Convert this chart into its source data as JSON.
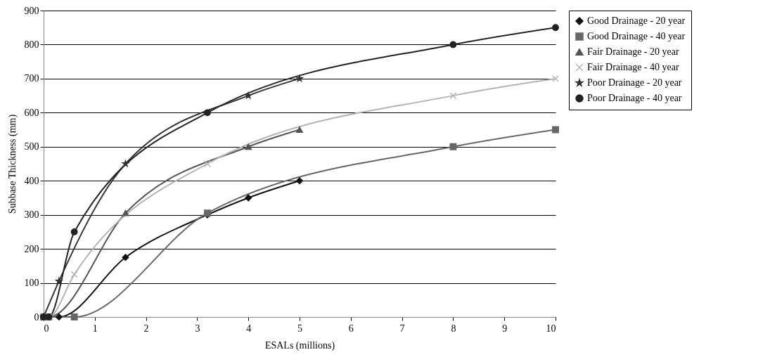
{
  "chart_data": {
    "type": "line",
    "xlabel": "ESALs (millions)",
    "ylabel": "Subbase Thickness (mm)",
    "xlim": [
      0,
      10
    ],
    "xticks": [
      0,
      1,
      2,
      3,
      4,
      5,
      6,
      7,
      8,
      9,
      10
    ],
    "ylim": [
      0,
      900
    ],
    "yticks": [
      0,
      100,
      200,
      300,
      400,
      500,
      600,
      700,
      800,
      900
    ],
    "grid": "y",
    "legend": "right",
    "series": [
      {
        "name": "Good Drainage - 20 year",
        "color": "#111111",
        "marker": "diamond",
        "x": [
          0,
          0.3,
          1.6,
          3.2,
          4,
          5
        ],
        "values": [
          0,
          0,
          175,
          300,
          350,
          400
        ]
      },
      {
        "name": "Good Drainage - 40 year",
        "color": "#666666",
        "marker": "square",
        "x": [
          0,
          0.1,
          0.6,
          3.2,
          8,
          10
        ],
        "values": [
          0,
          0,
          0,
          305,
          500,
          550
        ]
      },
      {
        "name": "Fair Drainage - 20 year",
        "color": "#555555",
        "marker": "triangle",
        "x": [
          0,
          0.1,
          1.6,
          4,
          5
        ],
        "values": [
          0,
          0,
          305,
          500,
          550
        ]
      },
      {
        "name": "Fair Drainage - 40 year",
        "color": "#b3b3b3",
        "marker": "cross",
        "x": [
          0,
          0.1,
          0.6,
          3.2,
          8,
          10
        ],
        "values": [
          0,
          0,
          125,
          450,
          650,
          700
        ]
      },
      {
        "name": "Poor Drainage - 20 year",
        "color": "#333333",
        "marker": "star",
        "x": [
          0,
          0.3,
          1.6,
          4,
          5
        ],
        "values": [
          0,
          105,
          450,
          650,
          700
        ]
      },
      {
        "name": "Poor Drainage - 40 year",
        "color": "#222222",
        "marker": "circle",
        "x": [
          0,
          0.1,
          0.6,
          3.2,
          8,
          10
        ],
        "values": [
          0,
          0,
          250,
          600,
          800,
          850
        ]
      }
    ]
  }
}
